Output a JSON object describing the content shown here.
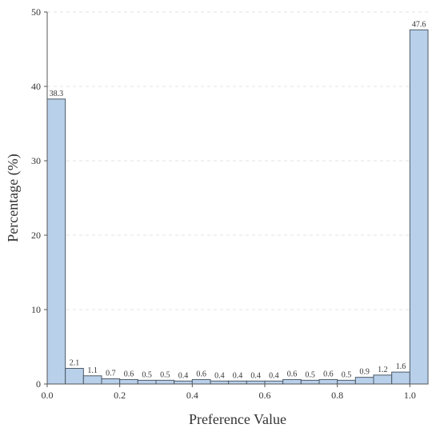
{
  "chart_data": {
    "type": "bar",
    "xlabel": "Preference Value",
    "ylabel": "Percentage (%)",
    "xlim": [
      0.0,
      1.0
    ],
    "ylim": [
      0,
      50
    ],
    "xticks": [
      "0.0",
      "0.2",
      "0.4",
      "0.6",
      "0.8",
      "1.0"
    ],
    "yticks": [
      "0",
      "10",
      "20",
      "30",
      "40",
      "50"
    ],
    "bin_edges": [
      0.0,
      0.05,
      0.1,
      0.15,
      0.2,
      0.25,
      0.3,
      0.35,
      0.4,
      0.45,
      0.5,
      0.55,
      0.6,
      0.65,
      0.7,
      0.75,
      0.8,
      0.85,
      0.9,
      0.95,
      1.0
    ],
    "values": [
      38.3,
      2.1,
      1.1,
      0.7,
      0.6,
      0.5,
      0.5,
      0.4,
      0.6,
      0.4,
      0.4,
      0.4,
      0.4,
      0.6,
      0.5,
      0.6,
      0.5,
      0.9,
      1.2,
      1.6,
      47.6
    ],
    "value_labels": [
      "38.3",
      "2.1",
      "1.1",
      "0.7",
      "0.6",
      "0.5",
      "0.5",
      "0.4",
      "0.6",
      "0.4",
      "0.4",
      "0.4",
      "0.4",
      "0.6",
      "0.5",
      "0.6",
      "0.5",
      "0.9",
      "1.2",
      "1.6",
      "47.6"
    ],
    "grid": "y-dashed",
    "bar_color": "#b8d0ea",
    "bar_edge_color": "#4d5a66"
  }
}
